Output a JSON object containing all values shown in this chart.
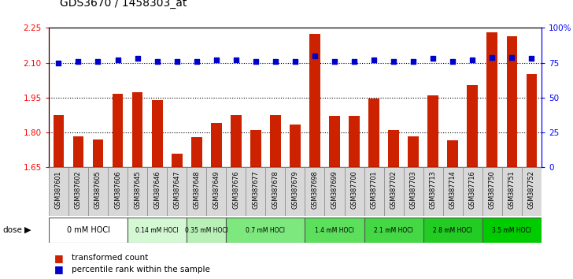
{
  "title": "GDS3670 / 1458303_at",
  "samples": [
    "GSM387601",
    "GSM387602",
    "GSM387605",
    "GSM387606",
    "GSM387645",
    "GSM387646",
    "GSM387647",
    "GSM387648",
    "GSM387649",
    "GSM387676",
    "GSM387677",
    "GSM387678",
    "GSM387679",
    "GSM387698",
    "GSM387699",
    "GSM387700",
    "GSM387701",
    "GSM387702",
    "GSM387703",
    "GSM387713",
    "GSM387714",
    "GSM387716",
    "GSM387750",
    "GSM387751",
    "GSM387752"
  ],
  "bar_values": [
    1.875,
    1.785,
    1.77,
    1.965,
    1.975,
    1.94,
    1.71,
    1.78,
    1.84,
    1.875,
    1.81,
    1.875,
    1.835,
    2.225,
    1.87,
    1.87,
    1.945,
    1.81,
    1.785,
    1.96,
    1.765,
    2.005,
    2.23,
    2.215,
    2.05
  ],
  "percentile_values": [
    75,
    76,
    76,
    77,
    78,
    76,
    76,
    76,
    77,
    77,
    76,
    76,
    76,
    80,
    76,
    76,
    77,
    76,
    76,
    78,
    76,
    77,
    79,
    79,
    78
  ],
  "dose_groups": [
    {
      "label": "0 mM HOCl",
      "start": 0,
      "end": 4,
      "color": "#ffffff"
    },
    {
      "label": "0.14 mM HOCl",
      "start": 4,
      "end": 7,
      "color": "#d4f7d4"
    },
    {
      "label": "0.35 mM HOCl",
      "start": 7,
      "end": 9,
      "color": "#b8f0b8"
    },
    {
      "label": "0.7 mM HOCl",
      "start": 9,
      "end": 13,
      "color": "#7de87d"
    },
    {
      "label": "1.4 mM HOCl",
      "start": 13,
      "end": 16,
      "color": "#5ce05c"
    },
    {
      "label": "2.1 mM HOCl",
      "start": 16,
      "end": 19,
      "color": "#44d844"
    },
    {
      "label": "2.8 mM HOCl",
      "start": 19,
      "end": 22,
      "color": "#22cc22"
    },
    {
      "label": "3.5 mM HOCl",
      "start": 22,
      "end": 25,
      "color": "#00cc00"
    }
  ],
  "bar_color": "#cc2200",
  "dot_color": "#0000cc",
  "ylim_left": [
    1.65,
    2.25
  ],
  "ylim_right": [
    0,
    100
  ],
  "yticks_left": [
    1.65,
    1.8,
    1.95,
    2.1,
    2.25
  ],
  "yticks_right": [
    0,
    25,
    50,
    75,
    100
  ],
  "ytick_labels_right": [
    "0",
    "25",
    "50",
    "75",
    "100%"
  ],
  "hlines": [
    1.8,
    1.95,
    2.1
  ],
  "chart_bg": "#ffffff",
  "xtick_bg": "#d8d8d8"
}
